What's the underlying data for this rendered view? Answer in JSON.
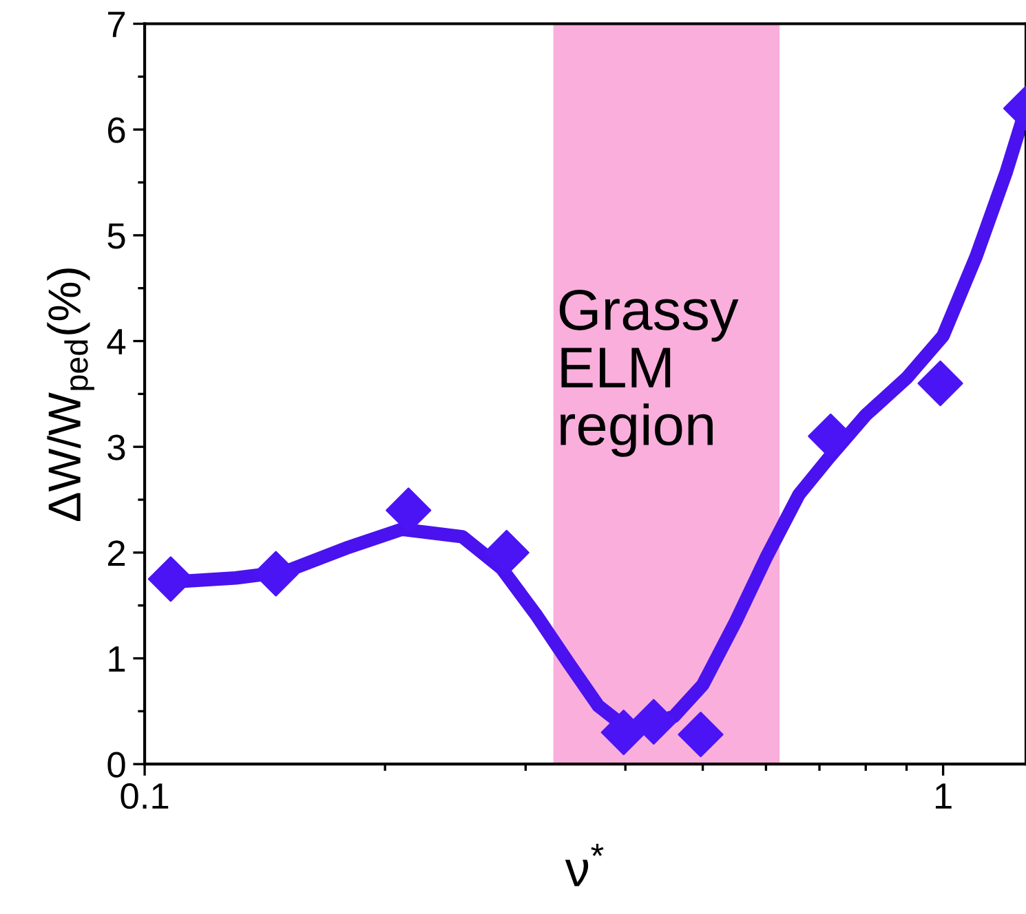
{
  "chart_data": {
    "type": "scatter",
    "xlabel": "ν$^{*}$",
    "ylabel": "ΔW/W$_{ped}$(%)",
    "log": "x",
    "xlim": [
      0.1,
      1.27
    ],
    "xticks": [
      0.1,
      1
    ],
    "ylim": [
      0,
      7
    ],
    "yticks": [
      0,
      1,
      2,
      3,
      4,
      5,
      6,
      7
    ],
    "grid": false,
    "legend": false,
    "series": [
      {
        "type": "line",
        "color": "#4a12ee",
        "marker": "none",
        "line_style": "solid",
        "x": [
          0.107,
          0.13,
          0.15,
          0.18,
          0.21,
          0.25,
          0.28,
          0.31,
          0.34,
          0.37,
          0.4,
          0.43,
          0.46,
          0.5,
          0.55,
          0.6,
          0.66,
          0.72,
          0.8,
          0.9,
          1.0,
          1.1,
          1.2,
          1.27
        ],
        "values": [
          1.72,
          1.76,
          1.82,
          2.05,
          2.22,
          2.15,
          1.85,
          1.4,
          0.95,
          0.55,
          0.35,
          0.38,
          0.45,
          0.75,
          1.35,
          1.95,
          2.55,
          2.9,
          3.3,
          3.65,
          4.05,
          4.8,
          5.6,
          6.2
        ]
      },
      {
        "color": "#4b14f5",
        "marker": "diamond",
        "x": [
          0.1078,
          0.146,
          0.214,
          0.284,
          0.398,
          0.434,
          0.497,
          0.723,
          0.992,
          1.27
        ],
        "values": [
          1.75,
          1.8,
          2.4,
          2.0,
          0.3,
          0.4,
          0.28,
          3.1,
          3.6,
          6.2
        ]
      }
    ],
    "bands": [
      {
        "axis": "x",
        "from": 0.325,
        "to": 0.624,
        "label": "Grassy\nELM\nregion",
        "color": "#f9aedc"
      }
    ]
  }
}
